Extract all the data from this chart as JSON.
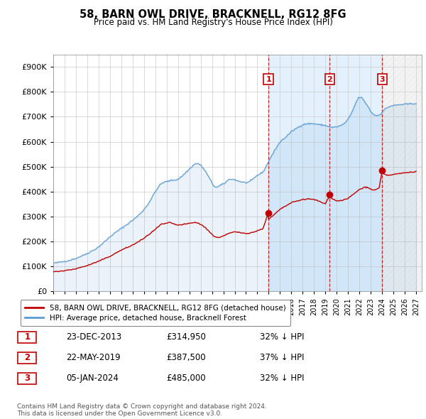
{
  "title": "58, BARN OWL DRIVE, BRACKNELL, RG12 8FG",
  "subtitle": "Price paid vs. HM Land Registry's House Price Index (HPI)",
  "ylim": [
    0,
    950000
  ],
  "yticks": [
    0,
    100000,
    200000,
    300000,
    400000,
    500000,
    600000,
    700000,
    800000,
    900000
  ],
  "xlim_start": 1995.0,
  "xlim_end": 2027.5,
  "sale_year_floats": [
    2013.978,
    2019.386,
    2024.014
  ],
  "sale_prices": [
    314950,
    387500,
    485000
  ],
  "sale_labels": [
    "1",
    "2",
    "3"
  ],
  "sale_info": [
    {
      "num": "1",
      "date": "23-DEC-2013",
      "price": "£314,950",
      "note": "32% ↓ HPI"
    },
    {
      "num": "2",
      "date": "22-MAY-2019",
      "price": "£387,500",
      "note": "37% ↓ HPI"
    },
    {
      "num": "3",
      "date": "05-JAN-2024",
      "price": "£485,000",
      "note": "32% ↓ HPI"
    }
  ],
  "hpi_color": "#5b9bd5",
  "price_color": "#c00000",
  "vline_color": "#c00000",
  "shade_color": "#ddeeff",
  "legend_label_price": "58, BARN OWL DRIVE, BRACKNELL, RG12 8FG (detached house)",
  "legend_label_hpi": "HPI: Average price, detached house, Bracknell Forest",
  "footer": "Contains HM Land Registry data © Crown copyright and database right 2024.\nThis data is licensed under the Open Government Licence v3.0."
}
